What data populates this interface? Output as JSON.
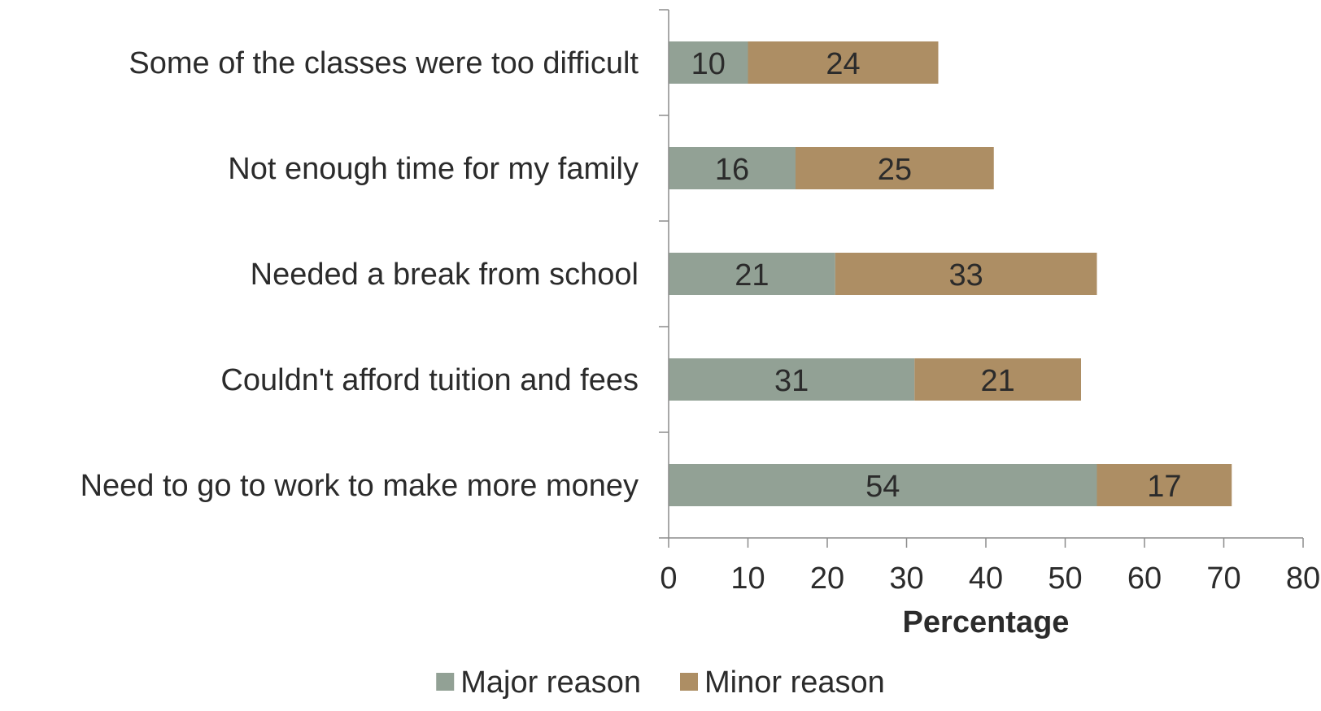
{
  "chart_data": {
    "type": "bar",
    "orientation": "horizontal",
    "stacked": true,
    "categories": [
      "Some of the classes were too difficult",
      "Not enough time for my family",
      "Needed a break from school",
      "Couldn't afford tuition and fees",
      "Need to go to work to make more money"
    ],
    "series": [
      {
        "name": "Major reason",
        "color": "#92a195",
        "values": [
          10,
          16,
          21,
          31,
          54
        ]
      },
      {
        "name": "Minor reason",
        "color": "#ad8e64",
        "values": [
          24,
          25,
          33,
          21,
          17
        ]
      }
    ],
    "xlabel": "Percentage",
    "ylabel": "",
    "xlim": [
      0,
      80
    ],
    "xticks": [
      0,
      10,
      20,
      30,
      40,
      50,
      60,
      70,
      80
    ],
    "grid": false,
    "data_labels": true,
    "legend_position": "bottom"
  }
}
